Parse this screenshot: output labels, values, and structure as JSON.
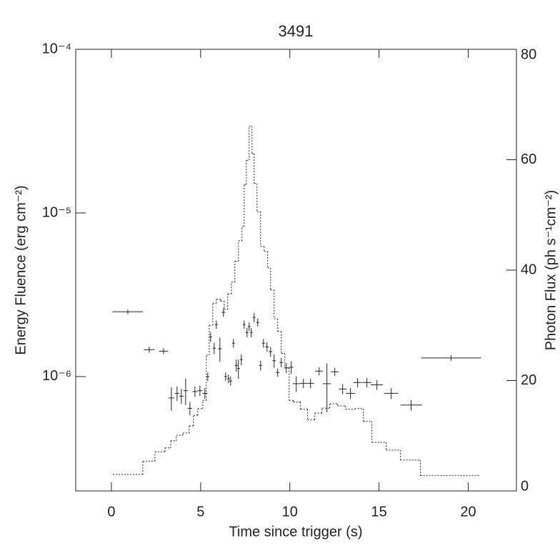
{
  "chart_data": {
    "type": "scatter",
    "title": "3491",
    "xlabel": "Time since trigger (s)",
    "ylabel": "Energy Fluence (erg cm⁻²)",
    "y2label": "Photon Flux (ph s⁻¹cm⁻²)",
    "xlim": [
      -2,
      22.7
    ],
    "xticks": [
      0,
      5,
      10,
      15,
      20
    ],
    "ylim": [
      2e-07,
      0.0001
    ],
    "yscale": "log",
    "yticks": [
      {
        "value": 1e-06,
        "label": "10⁻⁶"
      },
      {
        "value": 1e-05,
        "label": "10⁻⁵"
      },
      {
        "value": 0.0001,
        "label": "10⁻⁴"
      }
    ],
    "y2lim": [
      0,
      80
    ],
    "y2ticks": [
      0,
      20,
      40,
      60,
      80
    ],
    "series": [
      {
        "type": "errorbar",
        "color": "#000000",
        "x": [
          0.92,
          2.12,
          2.92,
          3.36,
          3.68,
          3.92,
          4.16,
          4.4,
          4.68,
          4.96,
          5.24,
          5.4,
          5.56,
          5.76,
          5.88,
          6.08,
          6.28,
          6.4,
          6.56,
          6.68,
          6.84,
          7.0,
          7.12,
          7.28,
          7.44,
          7.6,
          7.72,
          7.84,
          8.0,
          8.2,
          8.36,
          8.52,
          8.72,
          8.92,
          9.12,
          9.32,
          9.52,
          9.8,
          10.08,
          10.36,
          10.76,
          11.16,
          11.64,
          12.08,
          12.52,
          12.96,
          13.4,
          13.8,
          14.32,
          14.88,
          15.68,
          16.8,
          19.04
        ],
        "values": [
          2.49e-06,
          1.46e-06,
          1.43e-06,
          7.4e-07,
          7.9e-07,
          7.6e-07,
          8.2e-07,
          6.4e-07,
          8.1e-07,
          8.2e-07,
          7.9e-07,
          1e-06,
          1.75e-06,
          1.49e-06,
          2.08e-06,
          1.48e-06,
          2.47e-06,
          1e-06,
          9.7e-07,
          9.4e-07,
          1.6e-06,
          1.17e-06,
          1.12e-06,
          1.27e-06,
          2.08e-06,
          1.86e-06,
          2.02e-06,
          1.86e-06,
          2.3e-06,
          2.14e-06,
          1.17e-06,
          1.6e-06,
          1.52e-06,
          1.42e-06,
          1.25e-06,
          1.06e-06,
          1.22e-06,
          1.13e-06,
          1.14e-06,
          9.05e-07,
          9.1e-07,
          9.1e-07,
          1.08e-06,
          9.05e-07,
          1.07e-06,
          8.4e-07,
          7.9e-07,
          9.2e-07,
          9.2e-07,
          8.9e-07,
          7.9e-07,
          6.7e-07,
          1.3e-06
        ],
        "xerr": [
          0.86,
          0.3,
          0.25,
          0.16,
          0.12,
          0.12,
          0.12,
          0.12,
          0.14,
          0.14,
          0.14,
          0.08,
          0.08,
          0.08,
          0.08,
          0.1,
          0.1,
          0.08,
          0.08,
          0.08,
          0.08,
          0.08,
          0.08,
          0.08,
          0.08,
          0.08,
          0.08,
          0.08,
          0.08,
          0.08,
          0.08,
          0.08,
          0.1,
          0.1,
          0.1,
          0.1,
          0.1,
          0.12,
          0.12,
          0.2,
          0.2,
          0.2,
          0.22,
          0.22,
          0.22,
          0.22,
          0.26,
          0.24,
          0.26,
          0.34,
          0.4,
          0.6,
          1.68
        ],
        "yerr": [
          8e-08,
          6e-08,
          6e-08,
          1.2e-07,
          8e-08,
          8e-08,
          1.5e-07,
          6e-08,
          6e-08,
          6e-08,
          6e-08,
          6e-08,
          1.2e-07,
          1.2e-07,
          1.2e-07,
          2.5e-07,
          1.5e-07,
          6e-08,
          6e-08,
          6e-08,
          1e-07,
          1e-07,
          1.5e-07,
          1e-07,
          1.2e-07,
          1.2e-07,
          1.2e-07,
          1.2e-07,
          1.5e-07,
          1.2e-07,
          8e-08,
          1e-07,
          1e-07,
          1e-07,
          1.2e-07,
          6e-08,
          8e-08,
          8e-08,
          1e-07,
          1e-07,
          6e-08,
          6e-08,
          6e-08,
          3e-07,
          6e-08,
          6e-08,
          6e-08,
          6e-08,
          6e-08,
          6e-08,
          6e-08,
          5e-08,
          5e-08
        ]
      },
      {
        "type": "step",
        "axis": "y2",
        "color": "#000000",
        "linestyle": "dotted",
        "bins": [
          0.08,
          1.76,
          2.44,
          3.0,
          3.32,
          3.64,
          4.0,
          4.36,
          4.6,
          4.84,
          5.12,
          5.32,
          5.48,
          5.68,
          5.88,
          6.12,
          6.32,
          6.52,
          6.72,
          6.92,
          7.12,
          7.32,
          7.44,
          7.56,
          7.72,
          7.88,
          8.0,
          8.16,
          8.36,
          8.56,
          8.76,
          8.92,
          9.12,
          9.32,
          9.52,
          9.72,
          9.96,
          10.2,
          10.6,
          11.0,
          11.4,
          11.8,
          12.24,
          12.68,
          13.12,
          13.64,
          14.12,
          14.6,
          15.4,
          16.2,
          17.32,
          20.68
        ],
        "values": [
          3,
          5.4,
          7.1,
          7.8,
          9.1,
          10.1,
          10.5,
          11.8,
          13.7,
          14.9,
          16.4,
          24.6,
          30,
          34,
          34.7,
          34.4,
          32.9,
          35.7,
          37.8,
          41.6,
          45.3,
          47.9,
          55.5,
          59.9,
          66.1,
          61.1,
          55.7,
          50.6,
          44.3,
          43.4,
          40.4,
          36.4,
          31.2,
          28.9,
          24.9,
          22.3,
          16.4,
          16.1,
          14.8,
          12.9,
          14.1,
          15.0,
          15.8,
          15.4,
          14.8,
          14.9,
          12.6,
          8.8,
          7.4,
          5.6,
          2.8
        ]
      }
    ]
  }
}
